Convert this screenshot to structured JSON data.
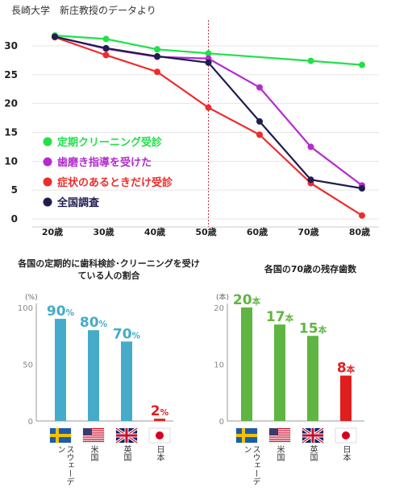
{
  "source_note": "長崎大学　新庄教授のデータより",
  "colors": {
    "cleaning": "#22e04a",
    "guidance": "#b42bcf",
    "symptom": "#ef2b2b",
    "national": "#1f1d50",
    "bar_blue": "#45abc8",
    "bar_green": "#5fb541",
    "bar_red": "#e01e1e"
  },
  "chart_data": [
    {
      "type": "line",
      "title": "",
      "xlabel": "",
      "ylabel": "",
      "categories": [
        "20歳",
        "30歳",
        "40歳",
        "50歳",
        "60歳",
        "70歳",
        "80歳"
      ],
      "ylim": [
        0,
        30
      ],
      "yticks": [
        0,
        5,
        10,
        15,
        20,
        25,
        30
      ],
      "grid": "horizontal",
      "marker_line_at": "50歳",
      "legend_placement": "left-middle",
      "series": [
        {
          "name": "定期クリーニング受診",
          "color_key": "cleaning",
          "values": [
            31.8,
            31.2,
            29.4,
            28.7,
            null,
            27.4,
            26.7
          ]
        },
        {
          "name": "歯磨き指導を受けた",
          "color_key": "guidance",
          "values": [
            31.6,
            29.5,
            28.1,
            27.8,
            22.8,
            12.5,
            5.8
          ]
        },
        {
          "name": "症状のあるときだけ受診",
          "color_key": "symptom",
          "values": [
            31.5,
            28.4,
            25.5,
            19.3,
            14.6,
            6.2,
            0.6
          ]
        },
        {
          "name": "全国調査",
          "color_key": "national",
          "values": [
            31.6,
            29.6,
            28.2,
            27.1,
            16.9,
            6.8,
            5.3
          ]
        }
      ]
    },
    {
      "type": "bar",
      "title": "各国の定期的に歯科検診･クリーニングを受けている人の割合",
      "unit_label": "(%)",
      "ylim": [
        0,
        100
      ],
      "yticks": [
        0,
        50,
        100
      ],
      "categories": [
        "スウェーデン",
        "米国",
        "英国",
        "日本"
      ],
      "flags": [
        "sweden-flag-icon",
        "usa-flag-icon",
        "uk-flag-icon",
        "japan-flag-icon"
      ],
      "values": [
        90,
        80,
        70,
        2
      ],
      "value_labels": [
        "90",
        "80",
        "70",
        "2"
      ],
      "value_unit": "%",
      "bar_colors": [
        "bar_blue",
        "bar_blue",
        "bar_blue",
        "bar_red"
      ]
    },
    {
      "type": "bar",
      "title": "各国の70歳の残存歯数",
      "unit_label": "(本)",
      "ylim": [
        0,
        20
      ],
      "yticks": [
        0,
        10,
        20
      ],
      "categories": [
        "スウェーデン",
        "米国",
        "英国",
        "日本"
      ],
      "flags": [
        "sweden-flag-icon",
        "usa-flag-icon",
        "uk-flag-icon",
        "japan-flag-icon"
      ],
      "values": [
        20,
        17,
        15,
        8
      ],
      "value_labels": [
        "20",
        "17",
        "15",
        "8"
      ],
      "value_unit": "本",
      "bar_colors": [
        "bar_green",
        "bar_green",
        "bar_green",
        "bar_red"
      ]
    }
  ]
}
